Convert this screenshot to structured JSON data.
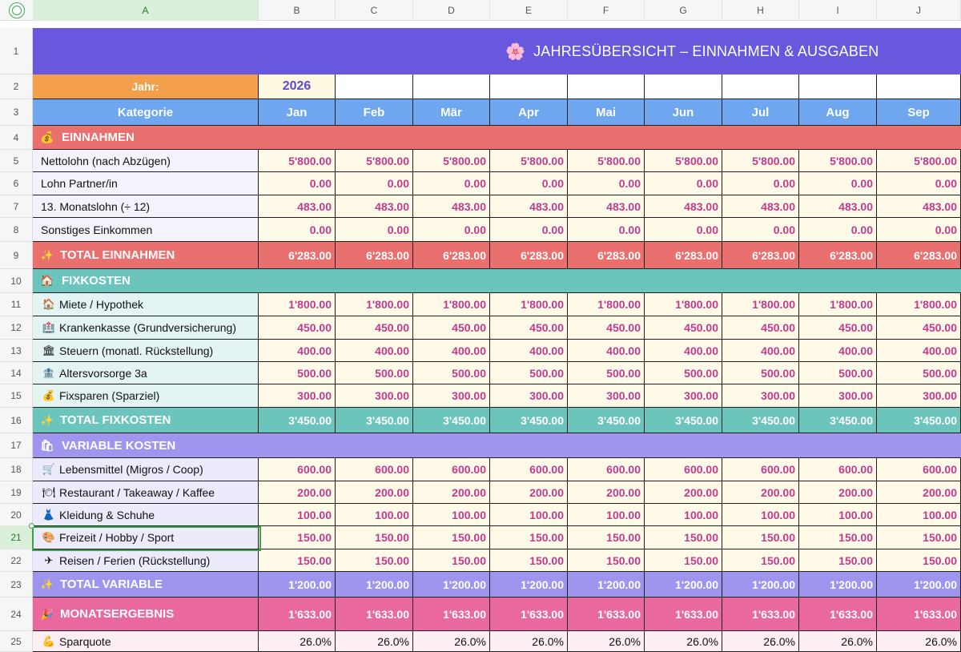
{
  "columns": [
    "A",
    "B",
    "C",
    "D",
    "E",
    "F",
    "G",
    "H",
    "I",
    "J"
  ],
  "title": "JAHRESÜBERSICHT – EINNAHMEN & AUSGABEN",
  "year_label": "Jahr:",
  "year_value": "2026",
  "category_header": "Kategorie",
  "months": [
    "Jan",
    "Feb",
    "Mär",
    "Apr",
    "Mai",
    "Jun",
    "Jul",
    "Aug",
    "Sep"
  ],
  "rows": [
    {
      "num": "1",
      "kind": "title"
    },
    {
      "num": "2",
      "kind": "year"
    },
    {
      "num": "3",
      "kind": "header"
    },
    {
      "num": "4",
      "kind": "section",
      "section": "income",
      "icon": "moneybag-icon",
      "glyph": "💰",
      "label": "EINNAHMEN"
    },
    {
      "num": "5",
      "kind": "data",
      "section": "income",
      "label": "Nettolohn (nach Abzügen)",
      "values": [
        "5'800.00",
        "5'800.00",
        "5'800.00",
        "5'800.00",
        "5'800.00",
        "5'800.00",
        "5'800.00",
        "5'800.00",
        "5'800.00"
      ]
    },
    {
      "num": "6",
      "kind": "data",
      "section": "income",
      "label": "Lohn Partner/in",
      "values": [
        "0.00",
        "0.00",
        "0.00",
        "0.00",
        "0.00",
        "0.00",
        "0.00",
        "0.00",
        "0.00"
      ]
    },
    {
      "num": "7",
      "kind": "data",
      "section": "income",
      "label": "13. Monatslohn (÷ 12)",
      "values": [
        "483.00",
        "483.00",
        "483.00",
        "483.00",
        "483.00",
        "483.00",
        "483.00",
        "483.00",
        "483.00"
      ]
    },
    {
      "num": "8",
      "kind": "data",
      "section": "income",
      "label": "Sonstiges Einkommen",
      "values": [
        "0.00",
        "0.00",
        "0.00",
        "0.00",
        "0.00",
        "0.00",
        "0.00",
        "0.00",
        "0.00"
      ]
    },
    {
      "num": "9",
      "kind": "total",
      "section": "income",
      "icon": "sparkles-icon",
      "glyph": "✨",
      "label": "TOTAL EINNAHMEN",
      "values": [
        "6'283.00",
        "6'283.00",
        "6'283.00",
        "6'283.00",
        "6'283.00",
        "6'283.00",
        "6'283.00",
        "6'283.00",
        "6'283.00"
      ]
    },
    {
      "num": "10",
      "kind": "section",
      "section": "fix",
      "icon": "house-icon",
      "glyph": "🏠",
      "label": "FIXKOSTEN"
    },
    {
      "num": "11",
      "kind": "data",
      "section": "fix",
      "icon": "house-icon",
      "glyph": "🏠",
      "label": "Miete / Hypothek",
      "values": [
        "1'800.00",
        "1'800.00",
        "1'800.00",
        "1'800.00",
        "1'800.00",
        "1'800.00",
        "1'800.00",
        "1'800.00",
        "1'800.00"
      ]
    },
    {
      "num": "12",
      "kind": "data",
      "section": "fix",
      "icon": "hospital-icon",
      "glyph": "🏥",
      "label": "Krankenkasse (Grundversicherung)",
      "values": [
        "450.00",
        "450.00",
        "450.00",
        "450.00",
        "450.00",
        "450.00",
        "450.00",
        "450.00",
        "450.00"
      ]
    },
    {
      "num": "13",
      "kind": "data",
      "section": "fix",
      "icon": "bank-icon",
      "glyph": "🏛",
      "label": "Steuern (monatl. Rückstellung)",
      "values": [
        "400.00",
        "400.00",
        "400.00",
        "400.00",
        "400.00",
        "400.00",
        "400.00",
        "400.00",
        "400.00"
      ]
    },
    {
      "num": "14",
      "kind": "data",
      "section": "fix",
      "icon": "pension-icon",
      "glyph": "🏦",
      "label": "Altersvorsorge 3a",
      "values": [
        "500.00",
        "500.00",
        "500.00",
        "500.00",
        "500.00",
        "500.00",
        "500.00",
        "500.00",
        "500.00"
      ]
    },
    {
      "num": "15",
      "kind": "data",
      "section": "fix",
      "icon": "moneybag-icon",
      "glyph": "💰",
      "label": "Fixsparen (Sparziel)",
      "values": [
        "300.00",
        "300.00",
        "300.00",
        "300.00",
        "300.00",
        "300.00",
        "300.00",
        "300.00",
        "300.00"
      ]
    },
    {
      "num": "16",
      "kind": "total",
      "section": "fix",
      "icon": "sparkles-icon",
      "glyph": "✨",
      "label": "TOTAL FIXKOSTEN",
      "values": [
        "3'450.00",
        "3'450.00",
        "3'450.00",
        "3'450.00",
        "3'450.00",
        "3'450.00",
        "3'450.00",
        "3'450.00",
        "3'450.00"
      ]
    },
    {
      "num": "17",
      "kind": "section",
      "section": "var",
      "icon": "shopping-bags-icon",
      "glyph": "🛍",
      "label": "VARIABLE KOSTEN"
    },
    {
      "num": "18",
      "kind": "data",
      "section": "var",
      "icon": "cart-icon",
      "glyph": "🛒",
      "label": "Lebensmittel (Migros / Coop)",
      "values": [
        "600.00",
        "600.00",
        "600.00",
        "600.00",
        "600.00",
        "600.00",
        "600.00",
        "600.00",
        "600.00"
      ]
    },
    {
      "num": "19",
      "kind": "data",
      "section": "var",
      "icon": "plate-icon",
      "glyph": "🍽",
      "label": "Restaurant / Takeaway / Kaffee",
      "values": [
        "200.00",
        "200.00",
        "200.00",
        "200.00",
        "200.00",
        "200.00",
        "200.00",
        "200.00",
        "200.00"
      ]
    },
    {
      "num": "20",
      "kind": "data",
      "section": "var",
      "icon": "dress-icon",
      "glyph": "👗",
      "label": "Kleidung & Schuhe",
      "values": [
        "100.00",
        "100.00",
        "100.00",
        "100.00",
        "100.00",
        "100.00",
        "100.00",
        "100.00",
        "100.00"
      ]
    },
    {
      "num": "21",
      "kind": "data",
      "section": "var",
      "icon": "palette-icon",
      "glyph": "🎨",
      "label": "Freizeit / Hobby / Sport",
      "values": [
        "150.00",
        "150.00",
        "150.00",
        "150.00",
        "150.00",
        "150.00",
        "150.00",
        "150.00",
        "150.00"
      ]
    },
    {
      "num": "22",
      "kind": "data",
      "section": "var",
      "icon": "airplane-icon",
      "glyph": "✈",
      "label": "Reisen / Ferien (Rückstellung)",
      "values": [
        "150.00",
        "150.00",
        "150.00",
        "150.00",
        "150.00",
        "150.00",
        "150.00",
        "150.00",
        "150.00"
      ]
    },
    {
      "num": "23",
      "kind": "total",
      "section": "var",
      "icon": "sparkles-icon",
      "glyph": "✨",
      "label": "TOTAL VARIABLE",
      "values": [
        "1'200.00",
        "1'200.00",
        "1'200.00",
        "1'200.00",
        "1'200.00",
        "1'200.00",
        "1'200.00",
        "1'200.00",
        "1'200.00"
      ]
    },
    {
      "num": "24",
      "kind": "total",
      "section": "result",
      "icon": "party-popper-icon",
      "glyph": "🎉",
      "label": "MONATSERGEBNIS",
      "values": [
        "1'633.00",
        "1'633.00",
        "1'633.00",
        "1'633.00",
        "1'633.00",
        "1'633.00",
        "1'633.00",
        "1'633.00",
        "1'633.00"
      ]
    },
    {
      "num": "25",
      "kind": "pct",
      "section": "result",
      "icon": "flexed-biceps-icon",
      "glyph": "💪",
      "label": "Sparquote",
      "values": [
        "26.0%",
        "26.0%",
        "26.0%",
        "26.0%",
        "26.0%",
        "26.0%",
        "26.0%",
        "26.0%",
        "26.0%"
      ]
    }
  ],
  "selected_row": "21",
  "selected_column": "A",
  "colors": {
    "title": "#6758dd",
    "income": "#ea6f6f",
    "fixkosten": "#6cc5bd",
    "variable": "#9e95ef",
    "result": "#e9699f",
    "header": "#6fa6f0",
    "year_label": "#f4a04a",
    "value_text": "#c13a8f"
  }
}
